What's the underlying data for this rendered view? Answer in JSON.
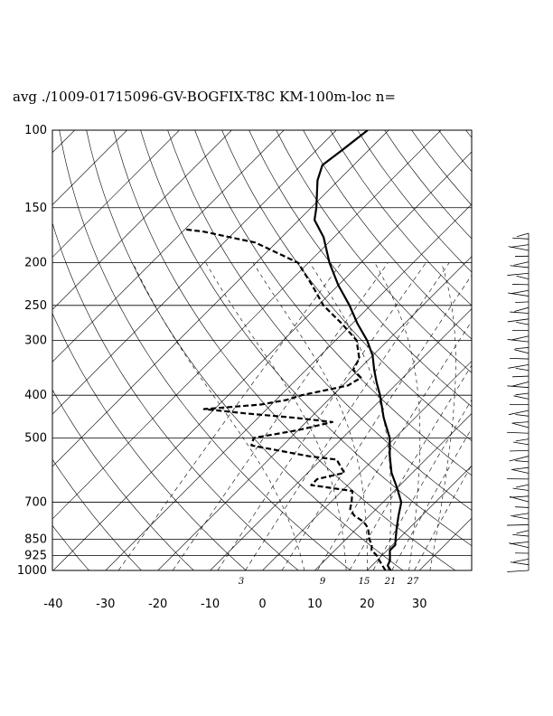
{
  "chart_data": {
    "type": "skew-t",
    "title": "avg ./1009-01715096-GV-BOGFIX-T8C KM-100m-loc n=",
    "pressure_ticks": [
      100,
      150,
      200,
      250,
      300,
      400,
      500,
      700,
      850,
      925,
      1000
    ],
    "temperature_ticks": [
      -40,
      -30,
      -20,
      -10,
      0,
      10,
      20,
      30
    ],
    "mixing_ratio_labels": [
      "3",
      "9",
      "15",
      "21",
      "27"
    ],
    "xlim": [
      -40,
      40
    ],
    "ylim": [
      1000,
      100
    ],
    "y_scale": "log",
    "grid": true,
    "series": [
      {
        "kind": "temperature",
        "style": "solid",
        "points": [
          [
            1000,
            24.5
          ],
          [
            975,
            23
          ],
          [
            950,
            22.5
          ],
          [
            925,
            21.5
          ],
          [
            900,
            20.5
          ],
          [
            875,
            20.5
          ],
          [
            850,
            19.5
          ],
          [
            800,
            17.5
          ],
          [
            750,
            15.5
          ],
          [
            700,
            13.5
          ],
          [
            650,
            10
          ],
          [
            600,
            6
          ],
          [
            550,
            2.5
          ],
          [
            500,
            -1
          ],
          [
            450,
            -6
          ],
          [
            400,
            -11
          ],
          [
            375,
            -14
          ],
          [
            350,
            -17
          ],
          [
            325,
            -20
          ],
          [
            300,
            -24
          ],
          [
            275,
            -29
          ],
          [
            250,
            -34
          ],
          [
            225,
            -40
          ],
          [
            200,
            -46
          ],
          [
            175,
            -52
          ],
          [
            160,
            -57
          ],
          [
            150,
            -59
          ],
          [
            130,
            -64
          ],
          [
            120,
            -66
          ],
          [
            110,
            -65
          ],
          [
            100,
            -64
          ]
        ]
      },
      {
        "kind": "dewpoint",
        "style": "dashed",
        "points": [
          [
            1000,
            23.5
          ],
          [
            975,
            22
          ],
          [
            950,
            20.5
          ],
          [
            925,
            19
          ],
          [
            900,
            17
          ],
          [
            875,
            16
          ],
          [
            850,
            14.5
          ],
          [
            800,
            12
          ],
          [
            775,
            10
          ],
          [
            750,
            7
          ],
          [
            725,
            5
          ],
          [
            700,
            4
          ],
          [
            660,
            2
          ],
          [
            640,
            -7
          ],
          [
            620,
            -7
          ],
          [
            600,
            -3
          ],
          [
            580,
            -5
          ],
          [
            560,
            -7
          ],
          [
            550,
            -13
          ],
          [
            520,
            -26
          ],
          [
            500,
            -27
          ],
          [
            480,
            -20
          ],
          [
            460,
            -15
          ],
          [
            450,
            -23
          ],
          [
            440,
            -33
          ],
          [
            430,
            -42
          ],
          [
            420,
            -32
          ],
          [
            410,
            -28
          ],
          [
            400,
            -26
          ],
          [
            380,
            -19
          ],
          [
            365,
            -18
          ],
          [
            350,
            -21
          ],
          [
            330,
            -22
          ],
          [
            300,
            -26
          ],
          [
            275,
            -32
          ],
          [
            250,
            -39
          ],
          [
            225,
            -45
          ],
          [
            200,
            -52
          ],
          [
            180,
            -64
          ],
          [
            170,
            -76
          ],
          [
            168,
            -80
          ]
        ]
      }
    ],
    "wind_barbs": {
      "count": 60
    }
  }
}
